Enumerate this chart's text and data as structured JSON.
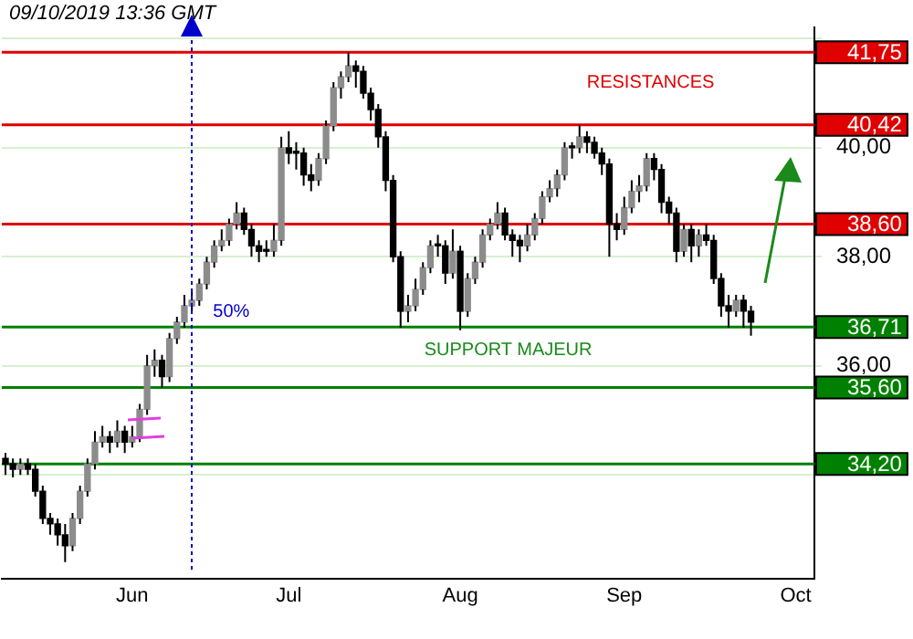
{
  "chart_data": {
    "type": "candlestick",
    "annotations": [
      "09/10/2019 13:36 GMT",
      "RESISTANCES",
      "SUPPORT MAJEUR",
      "50%"
    ],
    "categories": [
      null,
      null,
      null,
      null,
      null,
      null,
      null,
      null,
      null,
      null,
      null,
      null,
      null,
      null,
      null,
      null,
      null,
      "Jun",
      null,
      null,
      null,
      null,
      null,
      null,
      null,
      null,
      null,
      null,
      null,
      null,
      null,
      null,
      null,
      null,
      null,
      null,
      null,
      null,
      "Jul",
      null,
      null,
      null,
      null,
      null,
      null,
      null,
      null,
      null,
      null,
      null,
      null,
      null,
      null,
      null,
      null,
      null,
      null,
      null,
      null,
      null,
      null,
      "Aug",
      null,
      null,
      null,
      null,
      null,
      null,
      null,
      null,
      null,
      null,
      null,
      null,
      null,
      null,
      null,
      null,
      null,
      null,
      null,
      null,
      null,
      "Sep",
      null,
      null,
      null,
      null,
      null,
      null,
      null,
      null,
      null,
      null,
      null,
      null,
      null,
      null,
      null,
      null,
      null,
      null,
      null,
      null,
      null,
      null,
      "Oct",
      null,
      null
    ],
    "ohlc": [
      [
        34.3,
        34.4,
        34.0,
        34.2
      ],
      [
        34.2,
        34.3,
        33.95,
        34.1
      ],
      [
        34.1,
        34.3,
        34.0,
        34.2
      ],
      [
        34.2,
        34.3,
        34.0,
        34.1
      ],
      [
        34.1,
        34.2,
        33.6,
        33.7
      ],
      [
        33.7,
        33.8,
        33.1,
        33.2
      ],
      [
        33.2,
        33.3,
        32.9,
        33.1
      ],
      [
        33.1,
        33.2,
        32.7,
        32.9
      ],
      [
        32.9,
        33.1,
        32.4,
        32.7
      ],
      [
        32.7,
        33.3,
        32.6,
        33.2
      ],
      [
        33.2,
        33.8,
        33.1,
        33.7
      ],
      [
        33.7,
        34.3,
        33.6,
        34.2
      ],
      [
        34.2,
        34.8,
        34.1,
        34.6
      ],
      [
        34.6,
        34.9,
        34.5,
        34.7
      ],
      [
        34.7,
        34.8,
        34.4,
        34.6
      ],
      [
        34.6,
        35.0,
        34.5,
        34.8
      ],
      [
        34.8,
        34.9,
        34.4,
        34.6
      ],
      [
        34.6,
        34.9,
        34.5,
        34.7
      ],
      [
        34.7,
        35.3,
        34.6,
        35.2
      ],
      [
        35.2,
        36.2,
        35.1,
        36.0
      ],
      [
        36.0,
        36.3,
        35.8,
        36.1
      ],
      [
        36.1,
        36.2,
        35.6,
        35.8
      ],
      [
        35.8,
        36.6,
        35.7,
        36.5
      ],
      [
        36.5,
        36.9,
        36.4,
        36.8
      ],
      [
        36.8,
        37.3,
        36.7,
        37.1
      ],
      [
        37.1,
        37.4,
        37.0,
        37.2
      ],
      [
        37.2,
        37.6,
        37.1,
        37.5
      ],
      [
        37.5,
        38.0,
        37.4,
        37.9
      ],
      [
        37.9,
        38.3,
        37.8,
        38.2
      ],
      [
        38.2,
        38.5,
        38.1,
        38.3
      ],
      [
        38.3,
        38.7,
        38.2,
        38.6
      ],
      [
        38.6,
        39.0,
        38.5,
        38.8
      ],
      [
        38.8,
        38.9,
        38.4,
        38.5
      ],
      [
        38.5,
        38.6,
        38.0,
        38.2
      ],
      [
        38.2,
        38.3,
        37.9,
        38.1
      ],
      [
        38.1,
        38.3,
        38.0,
        38.1
      ],
      [
        38.1,
        38.6,
        38.0,
        38.3
      ],
      [
        38.3,
        40.2,
        38.2,
        40.0
      ],
      [
        40.0,
        40.3,
        39.7,
        39.9
      ],
      [
        39.9,
        40.1,
        39.6,
        39.9
      ],
      [
        39.9,
        40.0,
        39.3,
        39.5
      ],
      [
        39.5,
        39.7,
        39.2,
        39.4
      ],
      [
        39.4,
        39.9,
        39.3,
        39.8
      ],
      [
        39.8,
        40.5,
        39.7,
        40.4
      ],
      [
        40.4,
        41.2,
        40.3,
        41.1
      ],
      [
        41.1,
        41.4,
        40.9,
        41.3
      ],
      [
        41.3,
        41.75,
        41.2,
        41.5
      ],
      [
        41.5,
        41.6,
        41.1,
        41.4
      ],
      [
        41.4,
        41.5,
        40.9,
        41.0
      ],
      [
        41.0,
        41.1,
        40.5,
        40.7
      ],
      [
        40.7,
        40.8,
        40.0,
        40.2
      ],
      [
        40.2,
        40.3,
        39.2,
        39.4
      ],
      [
        39.4,
        39.5,
        37.9,
        38.0
      ],
      [
        38.0,
        38.1,
        36.7,
        37.0
      ],
      [
        37.0,
        37.3,
        36.8,
        37.1
      ],
      [
        37.1,
        37.6,
        37.0,
        37.4
      ],
      [
        37.4,
        37.9,
        37.3,
        37.8
      ],
      [
        37.8,
        38.3,
        37.7,
        38.2
      ],
      [
        38.2,
        38.4,
        38.0,
        38.2
      ],
      [
        38.2,
        38.3,
        37.5,
        37.7
      ],
      [
        37.7,
        38.5,
        37.6,
        38.1
      ],
      [
        38.1,
        38.2,
        36.65,
        37.0
      ],
      [
        37.0,
        37.7,
        36.9,
        37.6
      ],
      [
        37.6,
        38.0,
        37.5,
        37.9
      ],
      [
        37.9,
        38.5,
        37.8,
        38.4
      ],
      [
        38.4,
        38.7,
        38.3,
        38.6
      ],
      [
        38.6,
        39.0,
        38.5,
        38.8
      ],
      [
        38.8,
        38.9,
        38.3,
        38.4
      ],
      [
        38.4,
        38.5,
        38.0,
        38.3
      ],
      [
        38.3,
        38.4,
        37.9,
        38.2
      ],
      [
        38.2,
        38.6,
        38.1,
        38.4
      ],
      [
        38.4,
        38.8,
        38.3,
        38.7
      ],
      [
        38.7,
        39.2,
        38.6,
        39.1
      ],
      [
        39.1,
        39.4,
        39.0,
        39.25
      ],
      [
        39.25,
        39.6,
        39.1,
        39.5
      ],
      [
        39.5,
        40.1,
        39.4,
        40.0
      ],
      [
        40.0,
        40.1,
        39.8,
        40.0
      ],
      [
        40.0,
        40.42,
        39.9,
        40.2
      ],
      [
        40.2,
        40.3,
        39.9,
        40.1
      ],
      [
        40.1,
        40.2,
        39.8,
        39.9
      ],
      [
        39.9,
        40.0,
        39.5,
        39.7
      ],
      [
        39.7,
        39.8,
        38.0,
        38.6
      ],
      [
        38.6,
        38.8,
        38.3,
        38.5
      ],
      [
        38.5,
        39.1,
        38.4,
        38.9
      ],
      [
        38.9,
        39.4,
        38.8,
        39.2
      ],
      [
        39.2,
        39.5,
        39.0,
        39.3
      ],
      [
        39.3,
        39.9,
        39.2,
        39.8
      ],
      [
        39.8,
        39.9,
        39.4,
        39.6
      ],
      [
        39.6,
        39.7,
        38.8,
        39.0
      ],
      [
        39.0,
        39.1,
        38.6,
        38.8
      ],
      [
        38.8,
        38.9,
        37.9,
        38.1
      ],
      [
        38.1,
        38.6,
        38.0,
        38.5
      ],
      [
        38.5,
        38.6,
        37.9,
        38.2
      ],
      [
        38.2,
        38.5,
        38.0,
        38.4
      ],
      [
        38.4,
        38.6,
        38.2,
        38.3
      ],
      [
        38.3,
        38.4,
        37.5,
        37.6
      ],
      [
        37.6,
        37.7,
        36.9,
        37.1
      ],
      [
        37.1,
        37.3,
        36.7,
        37.0
      ],
      [
        37.0,
        37.3,
        36.9,
        37.2
      ],
      [
        37.2,
        37.3,
        36.7,
        37.0
      ],
      [
        37.0,
        37.1,
        36.55,
        36.8
      ],
      null,
      null,
      null,
      null,
      null,
      null,
      null,
      null
    ],
    "ylim": [
      32.1,
      42.2
    ],
    "yticks": [
      {
        "value": 34,
        "label": null
      },
      {
        "value": 36,
        "label": "36,00"
      },
      {
        "value": 38,
        "label": "38,00"
      },
      {
        "value": 40,
        "label": "40,00"
      },
      {
        "value": 42,
        "label": null
      }
    ],
    "ref_lines": [
      {
        "axis": "y",
        "value": 41.75,
        "label": "41,75",
        "color": "#e00000"
      },
      {
        "axis": "y",
        "value": 40.42,
        "label": "40,42",
        "color": "#e00000"
      },
      {
        "axis": "y",
        "value": 38.6,
        "label": "38,60",
        "color": "#e00000"
      },
      {
        "axis": "y",
        "value": 36.71,
        "label": "36,71",
        "color": "#008000"
      },
      {
        "axis": "y",
        "value": 35.6,
        "label": "35,60",
        "color": "#008000"
      },
      {
        "axis": "y",
        "value": 34.2,
        "label": "34,20",
        "color": "#008000"
      }
    ],
    "grid": "y",
    "legend": false
  }
}
